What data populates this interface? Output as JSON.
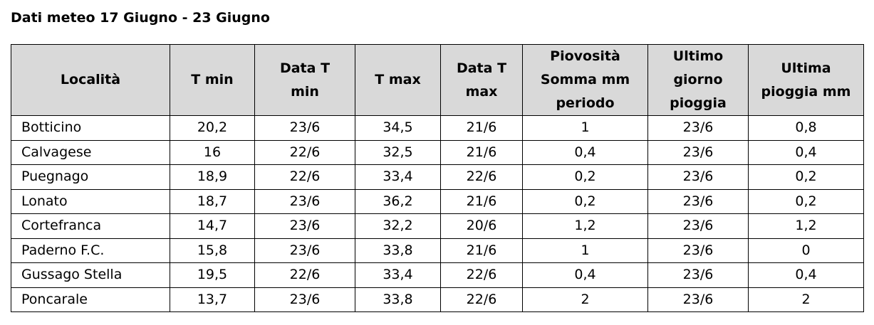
{
  "title": "Dati meteo 17 Giugno - 23 Giugno",
  "table": {
    "headers": [
      "Località",
      "T min",
      "Data T min",
      "T max",
      "Data T max",
      "Piovosità Somma mm periodo",
      "Ultimo giorno pioggia",
      "Ultima pioggia mm"
    ],
    "rows": [
      [
        "Botticino",
        "20,2",
        "23/6",
        "34,5",
        "21/6",
        "1",
        "23/6",
        "0,8"
      ],
      [
        "Calvagese",
        "16",
        "22/6",
        "32,5",
        "21/6",
        "0,4",
        "23/6",
        "0,4"
      ],
      [
        "Puegnago",
        "18,9",
        "22/6",
        "33,4",
        "22/6",
        "0,2",
        "23/6",
        "0,2"
      ],
      [
        "Lonato",
        "18,7",
        "23/6",
        "36,2",
        "21/6",
        "0,2",
        "23/6",
        "0,2"
      ],
      [
        "Cortefranca",
        "14,7",
        "23/6",
        "32,2",
        "20/6",
        "1,2",
        "23/6",
        "1,2"
      ],
      [
        "Paderno F.C.",
        "15,8",
        "23/6",
        "33,8",
        "21/6",
        "1",
        "23/6",
        "0"
      ],
      [
        "Gussago Stella",
        "19,5",
        "22/6",
        "33,4",
        "22/6",
        "0,4",
        "23/6",
        "0,4"
      ],
      [
        "Poncarale",
        "13,7",
        "23/6",
        "33,8",
        "22/6",
        "2",
        "23/6",
        "2"
      ]
    ]
  }
}
